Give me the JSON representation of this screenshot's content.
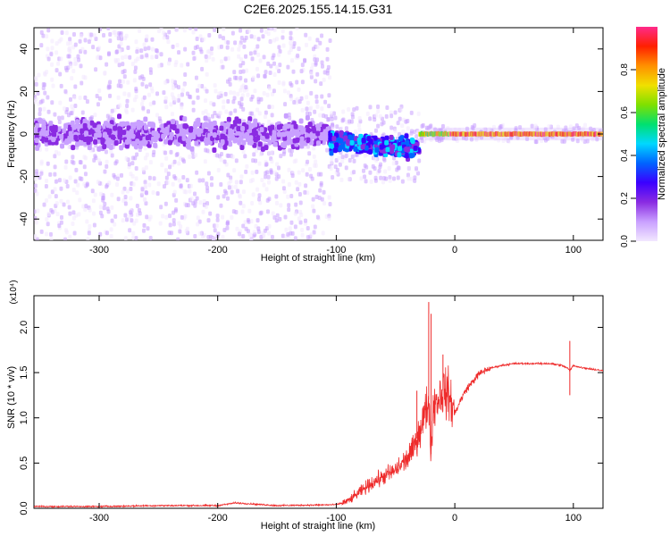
{
  "figure": {
    "title": "C2E6.2025.155.14.15.G31"
  },
  "chart_data": [
    {
      "type": "heatmap",
      "title": "",
      "xlabel": "Height of straight line (km)",
      "ylabel": "Frequency (Hz)",
      "xlim": [
        -355,
        125
      ],
      "ylim": [
        -50,
        50
      ],
      "xticks": [
        -300,
        -200,
        -100,
        0,
        100
      ],
      "yticks": [
        -40,
        -20,
        0,
        20,
        40
      ],
      "colorbar": {
        "label": "Normalized spectral amplitude",
        "range": [
          0,
          1
        ],
        "ticks": [
          "0.0",
          "0.2",
          "0.4",
          "0.6",
          "0.8"
        ],
        "colors": [
          "#f2e8ff",
          "#c9a0ff",
          "#8a2be2",
          "#3b00ff",
          "#0064ff",
          "#00d8ff",
          "#00e070",
          "#7fe000",
          "#f0e000",
          "#ff9000",
          "#ff2000",
          "#ff2a8a"
        ]
      },
      "bands": [
        {
          "x_range": [
            -355,
            -105
          ],
          "center_hz": 0,
          "dense_halfwidth_hz": 9,
          "sparse_halfwidth_hz": 50,
          "amplitude": 0.15
        },
        {
          "x_range": [
            -105,
            -30
          ],
          "center_hz": -5,
          "dense_halfwidth_hz": 6,
          "sparse_halfwidth_hz": 18,
          "amplitude": 0.35
        },
        {
          "x_range": [
            -30,
            125
          ],
          "center_hz": 0,
          "dense_halfwidth_hz": 1.5,
          "sparse_halfwidth_hz": 4,
          "amplitude": 0.8
        }
      ]
    },
    {
      "type": "line",
      "title": "",
      "xlabel": "Height of straight line (km)",
      "ylabel": "SNR (10 * v/v)",
      "y_multiplier": "(x10⁴)",
      "xlim": [
        -355,
        125
      ],
      "ylim": [
        0,
        2.35
      ],
      "xticks": [
        -300,
        -200,
        -100,
        0,
        100
      ],
      "yticks": [
        "0.0",
        "0.5",
        "1.0",
        "1.5",
        "2.0"
      ],
      "series": [
        {
          "color": "#ee2a2a",
          "x": [
            -355,
            -300,
            -250,
            -200,
            -185,
            -150,
            -100,
            -90,
            -80,
            -70,
            -60,
            -50,
            -40,
            -35,
            -30,
            -25,
            -22,
            -20,
            -18,
            -15,
            -10,
            -5,
            0,
            5,
            10,
            15,
            20,
            25,
            30,
            40,
            50,
            60,
            70,
            80,
            90,
            95,
            97,
            100,
            105,
            110,
            120,
            125
          ],
          "y": [
            0.02,
            0.02,
            0.03,
            0.03,
            0.06,
            0.03,
            0.04,
            0.08,
            0.18,
            0.28,
            0.35,
            0.42,
            0.55,
            0.65,
            0.85,
            1.05,
            1.2,
            0.6,
            1.15,
            1.2,
            1.3,
            1.25,
            1.05,
            1.2,
            1.32,
            1.4,
            1.48,
            1.52,
            1.55,
            1.58,
            1.6,
            1.6,
            1.6,
            1.6,
            1.58,
            1.55,
            1.52,
            1.58,
            1.56,
            1.55,
            1.53,
            1.52
          ],
          "spikes": [
            {
              "x": -22,
              "y": 2.28
            },
            {
              "x": -20,
              "y": 2.15
            },
            {
              "x": -10,
              "y": 1.7
            },
            {
              "x": -32,
              "y": 1.3
            },
            {
              "x": 97,
              "y": 1.85
            },
            {
              "x": 97,
              "y": 1.25
            }
          ]
        }
      ]
    }
  ]
}
